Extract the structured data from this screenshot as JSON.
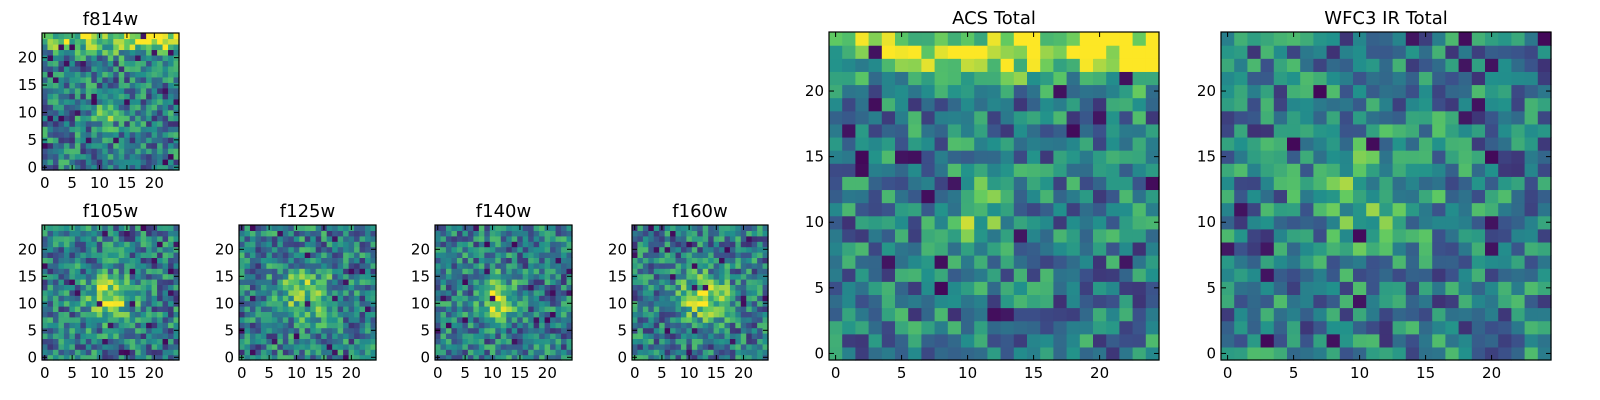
{
  "figure": {
    "type": "image-grid"
  },
  "colormap": {
    "name": "viridis",
    "stops": [
      "#440154",
      "#3b528b",
      "#21918c",
      "#5ec962",
      "#fde725"
    ]
  },
  "chart_data": [
    {
      "id": "f814w",
      "type": "heatmap",
      "title": "f814w",
      "image_size": [
        25,
        25
      ],
      "xlim": [
        0,
        24
      ],
      "ylim": [
        0,
        24
      ],
      "xticks": [
        "0",
        "5",
        "10",
        "15",
        "20"
      ],
      "yticks": [
        "0",
        "5",
        "10",
        "15",
        "20"
      ],
      "features": [
        {
          "x": 11,
          "y": 10,
          "sx": 1.4,
          "sy": 2.2,
          "amp": 0.35
        }
      ],
      "gradient": {
        "top_band_y": 23.5,
        "amp": 0.55
      },
      "seed": 814
    },
    {
      "id": "f105w",
      "type": "heatmap",
      "title": "f105w",
      "image_size": [
        25,
        25
      ],
      "xlim": [
        0,
        24
      ],
      "ylim": [
        0,
        24
      ],
      "xticks": [
        "0",
        "5",
        "10",
        "15",
        "20"
      ],
      "yticks": [
        "0",
        "5",
        "10",
        "15",
        "20"
      ],
      "features": [
        {
          "x": 12,
          "y": 11,
          "sx": 3.0,
          "sy": 3.0,
          "amp": 0.45
        }
      ],
      "seed": 105
    },
    {
      "id": "f125w",
      "type": "heatmap",
      "title": "f125w",
      "image_size": [
        25,
        25
      ],
      "xlim": [
        0,
        24
      ],
      "ylim": [
        0,
        24
      ],
      "xticks": [
        "0",
        "5",
        "10",
        "15",
        "20"
      ],
      "yticks": [
        "0",
        "5",
        "10",
        "15",
        "20"
      ],
      "features": [
        {
          "x": 12,
          "y": 12,
          "sx": 3.5,
          "sy": 3.5,
          "amp": 0.35
        }
      ],
      "seed": 125
    },
    {
      "id": "f140w",
      "type": "heatmap",
      "title": "f140w",
      "image_size": [
        25,
        25
      ],
      "xlim": [
        0,
        24
      ],
      "ylim": [
        0,
        24
      ],
      "xticks": [
        "0",
        "5",
        "10",
        "15",
        "20"
      ],
      "yticks": [
        "0",
        "5",
        "10",
        "15",
        "20"
      ],
      "features": [
        {
          "x": 11,
          "y": 11,
          "sx": 2.2,
          "sy": 3.0,
          "amp": 0.45
        }
      ],
      "seed": 140
    },
    {
      "id": "f160w",
      "type": "heatmap",
      "title": "f160w",
      "image_size": [
        25,
        25
      ],
      "xlim": [
        0,
        24
      ],
      "ylim": [
        0,
        24
      ],
      "xticks": [
        "0",
        "5",
        "10",
        "15",
        "20"
      ],
      "yticks": [
        "0",
        "5",
        "10",
        "15",
        "20"
      ],
      "features": [
        {
          "x": 13,
          "y": 11,
          "sx": 3.2,
          "sy": 3.0,
          "amp": 0.45
        }
      ],
      "seed": 160
    },
    {
      "id": "acs-total",
      "type": "heatmap",
      "title": "ACS Total",
      "image_size": [
        25,
        25
      ],
      "xlim": [
        0,
        24
      ],
      "ylim": [
        0,
        24
      ],
      "xticks": [
        "0",
        "5",
        "10",
        "15",
        "20"
      ],
      "yticks": [
        "0",
        "5",
        "10",
        "15",
        "20"
      ],
      "features": [
        {
          "x": 11,
          "y": 10,
          "sx": 1.4,
          "sy": 2.4,
          "amp": 0.35
        }
      ],
      "gradient": {
        "top_band_y": 23.5,
        "amp": 0.6
      },
      "seed": 9001
    },
    {
      "id": "wfc3-ir-total",
      "type": "heatmap",
      "title": "WFC3 IR Total",
      "image_size": [
        25,
        25
      ],
      "xlim": [
        0,
        24
      ],
      "ylim": [
        0,
        24
      ],
      "xticks": [
        "0",
        "5",
        "10",
        "15",
        "20"
      ],
      "yticks": [
        "0",
        "5",
        "10",
        "15",
        "20"
      ],
      "features": [
        {
          "x": 11,
          "y": 12,
          "sx": 3.5,
          "sy": 3.5,
          "amp": 0.25
        }
      ],
      "seed": 9002
    }
  ]
}
